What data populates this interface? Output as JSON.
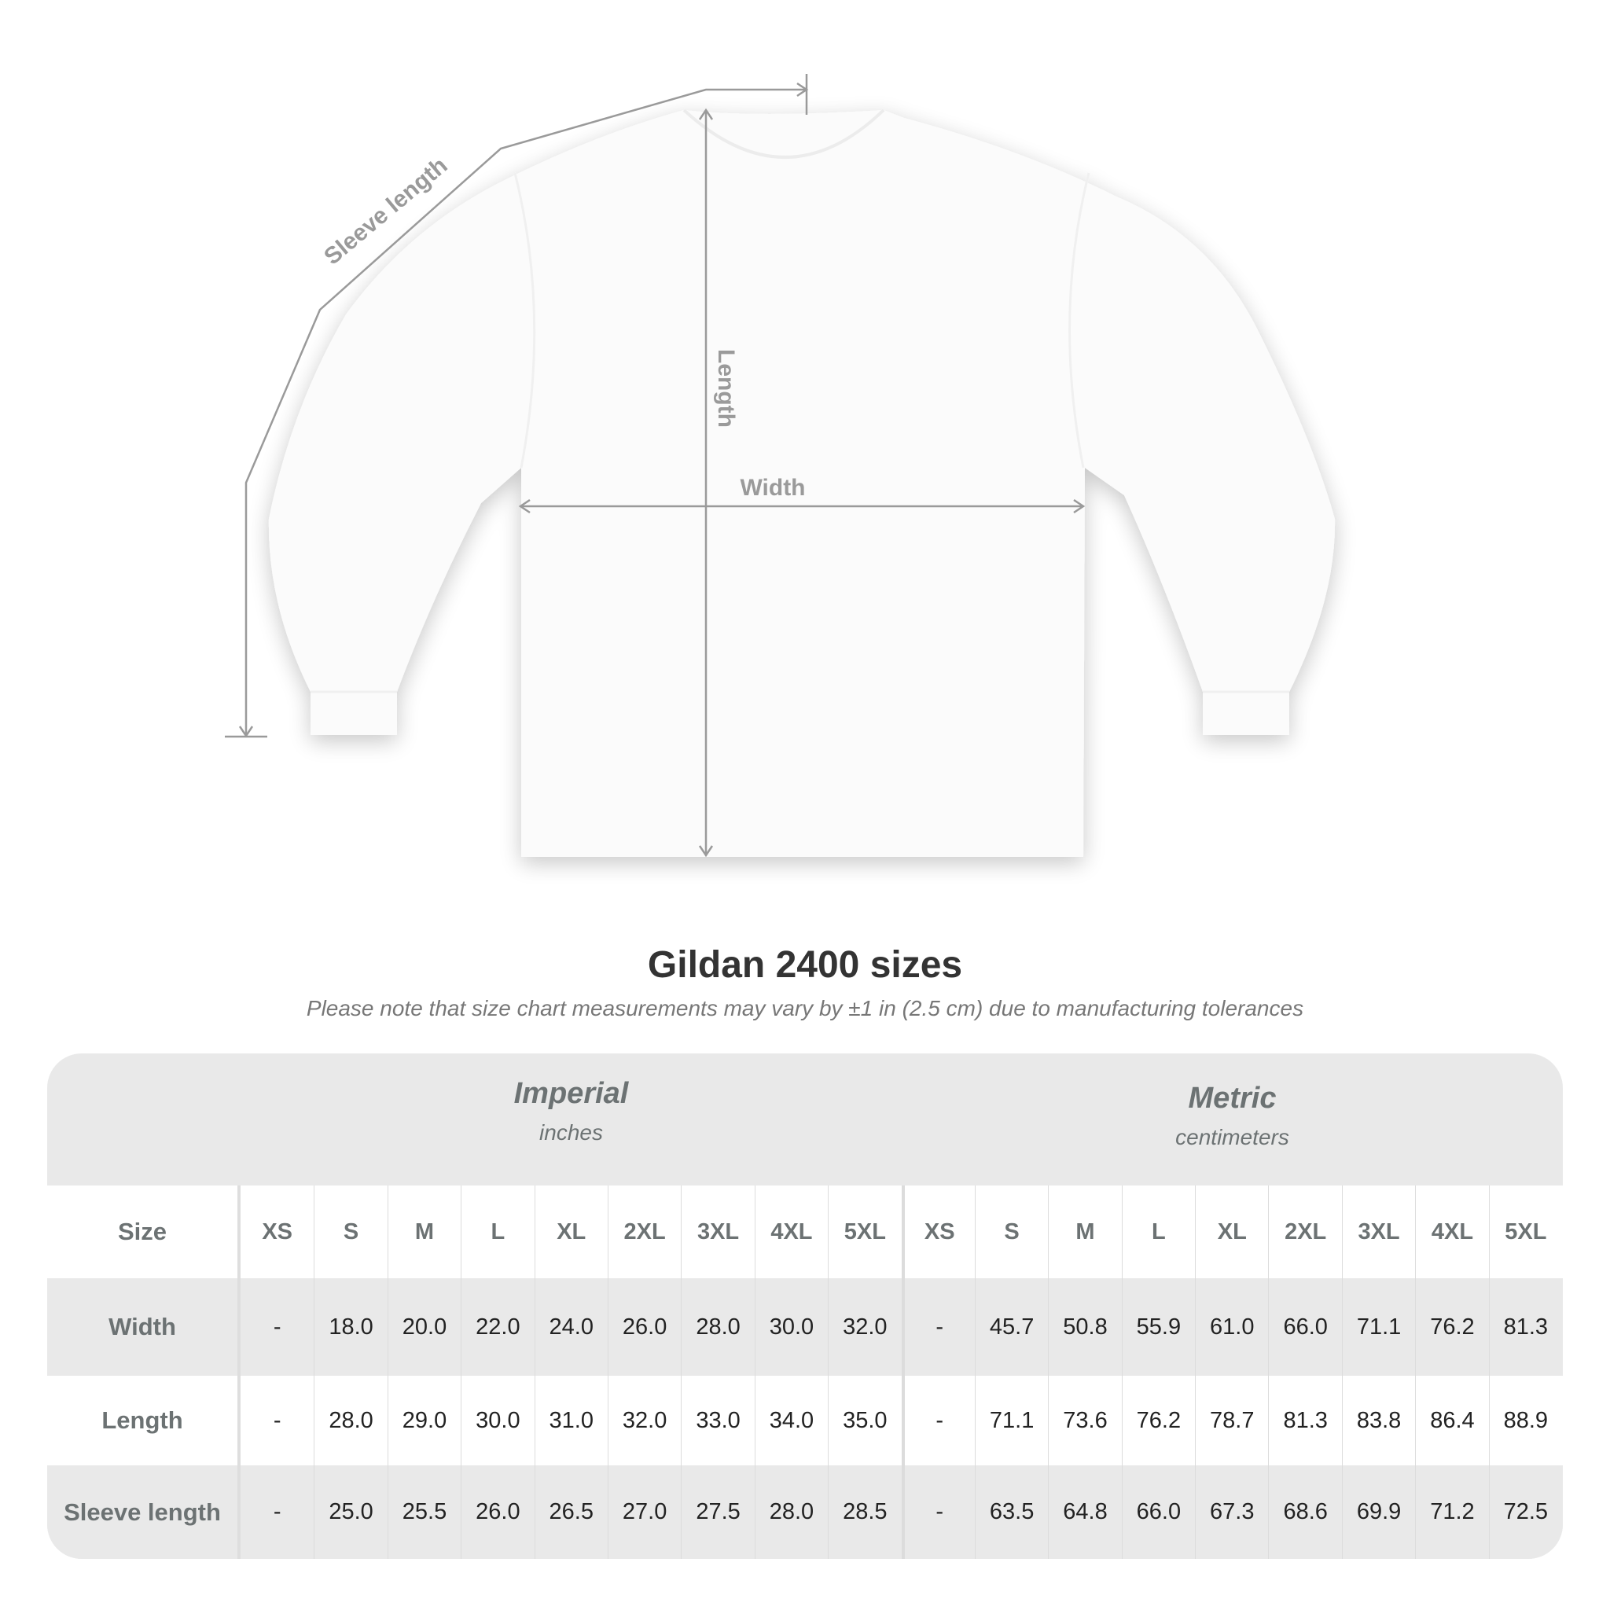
{
  "diagram": {
    "labels": {
      "sleeve": "Sleeve length",
      "length": "Length",
      "width": "Width"
    },
    "colors": {
      "shirt": "#ffffff",
      "measure_line": "#9a9a9a"
    }
  },
  "title": "Gildan 2400 sizes",
  "subtitle": "Please note that size chart measurements may vary by ±1 in (2.5 cm) due to manufacturing tolerances",
  "table": {
    "imperial": {
      "title": "Imperial",
      "unit": "inches"
    },
    "metric": {
      "title": "Metric",
      "unit": "centimeters"
    },
    "size_label": "Size",
    "sizes": [
      "XS",
      "S",
      "M",
      "L",
      "XL",
      "2XL",
      "3XL",
      "4XL",
      "5XL"
    ],
    "rows": [
      {
        "label": "Width",
        "imperial": [
          "-",
          "18.0",
          "20.0",
          "22.0",
          "24.0",
          "26.0",
          "28.0",
          "30.0",
          "32.0"
        ],
        "metric": [
          "-",
          "45.7",
          "50.8",
          "55.9",
          "61.0",
          "66.0",
          "71.1",
          "76.2",
          "81.3"
        ]
      },
      {
        "label": "Length",
        "imperial": [
          "-",
          "28.0",
          "29.0",
          "30.0",
          "31.0",
          "32.0",
          "33.0",
          "34.0",
          "35.0"
        ],
        "metric": [
          "-",
          "71.1",
          "73.6",
          "76.2",
          "78.7",
          "81.3",
          "83.8",
          "86.4",
          "88.9"
        ]
      },
      {
        "label": "Sleeve length",
        "imperial": [
          "-",
          "25.0",
          "25.5",
          "26.0",
          "26.5",
          "27.0",
          "27.5",
          "28.0",
          "28.5"
        ],
        "metric": [
          "-",
          "63.5",
          "64.8",
          "66.0",
          "67.3",
          "68.6",
          "69.9",
          "71.2",
          "72.5"
        ]
      }
    ]
  }
}
